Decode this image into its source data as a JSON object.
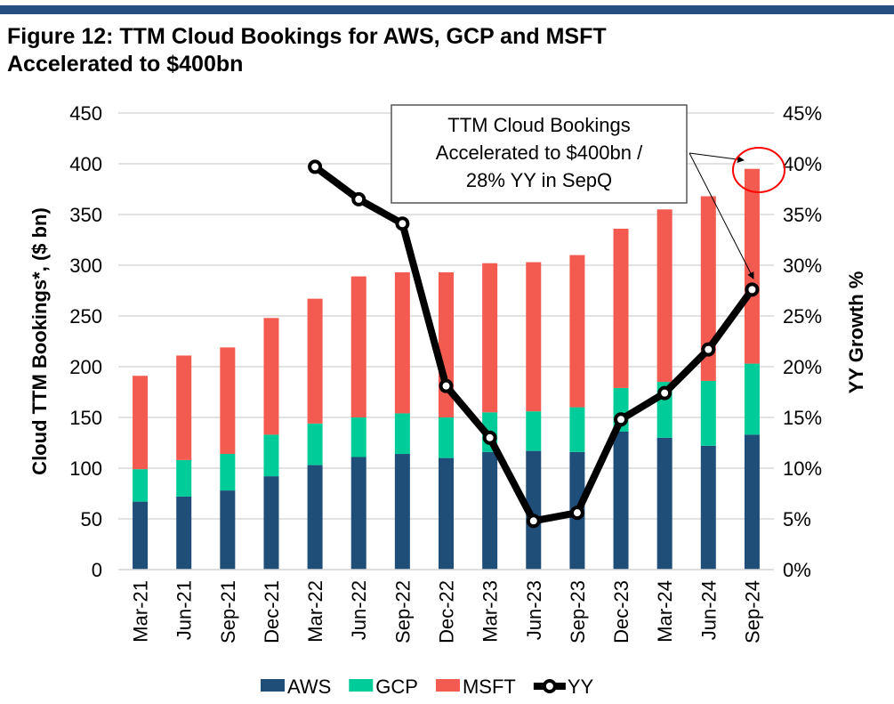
{
  "title_line1": "Figure 12: TTM Cloud Bookings for AWS, GCP and MSFT",
  "title_line2": "Accelerated to $400bn",
  "chart_data": {
    "type": "bar",
    "stacked": true,
    "categories": [
      "Mar-21",
      "Jun-21",
      "Sep-21",
      "Dec-21",
      "Mar-22",
      "Jun-22",
      "Sep-22",
      "Dec-22",
      "Mar-23",
      "Jun-23",
      "Sep-23",
      "Dec-23",
      "Mar-24",
      "Jun-24",
      "Sep-24"
    ],
    "series": [
      {
        "name": "AWS",
        "color": "#1f4e79",
        "values": [
          67,
          72,
          78,
          92,
          103,
          111,
          114,
          110,
          116,
          117,
          116,
          136,
          130,
          122,
          133
        ]
      },
      {
        "name": "GCP",
        "color": "#00cc99",
        "values": [
          32,
          36,
          36,
          41,
          41,
          39,
          40,
          40,
          39,
          39,
          44,
          43,
          55,
          64,
          70
        ]
      },
      {
        "name": "MSFT",
        "color": "#f45b50",
        "values": [
          92,
          103,
          105,
          115,
          123,
          139,
          139,
          143,
          147,
          147,
          150,
          157,
          170,
          182,
          192
        ]
      }
    ],
    "line_series": {
      "name": "YY",
      "axis": "right",
      "color": "#000000",
      "values": [
        null,
        null,
        null,
        null,
        39.7,
        36.5,
        34.1,
        18.1,
        13.0,
        4.8,
        5.6,
        14.8,
        17.4,
        21.7,
        27.6
      ]
    },
    "ylabel": "Cloud TTM Bookings*, ($ bn)",
    "ylim": [
      0,
      450
    ],
    "yticks": [
      "0",
      "50",
      "100",
      "150",
      "200",
      "250",
      "300",
      "350",
      "400",
      "450"
    ],
    "y2label": "YY Growth %",
    "y2lim": [
      0,
      45
    ],
    "y2ticks": [
      "0%",
      "5%",
      "10%",
      "15%",
      "20%",
      "25%",
      "30%",
      "35%",
      "40%",
      "45%"
    ],
    "grid": true,
    "legend": "bottom",
    "annotation": [
      "TTM Cloud Bookings",
      "Accelerated to $400bn /",
      "28% YY in SepQ"
    ],
    "highlight_color": "#ff0000"
  }
}
